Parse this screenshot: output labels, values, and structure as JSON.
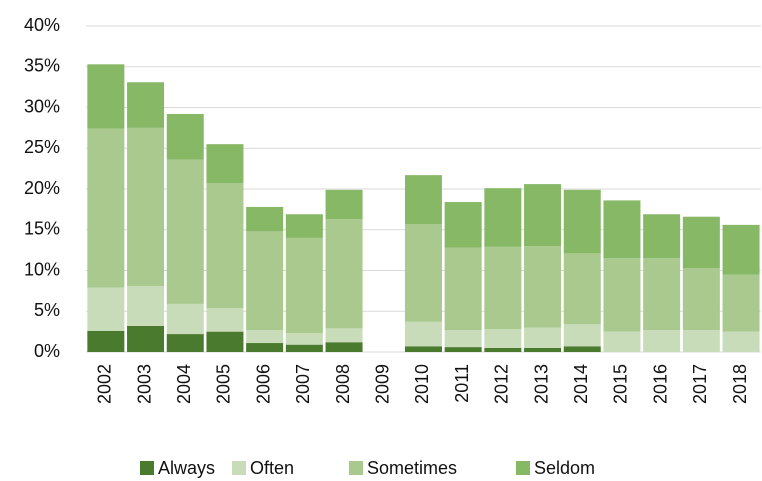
{
  "chart_data": {
    "type": "stacked-bar",
    "categories": [
      "2002",
      "2003",
      "2004",
      "2005",
      "2006",
      "2007",
      "2008",
      "2009",
      "2010",
      "2011",
      "2012",
      "2013",
      "2014",
      "2015",
      "2016",
      "2017",
      "2018"
    ],
    "series": [
      {
        "name": "Always",
        "color": "#4a7a2e",
        "values": [
          2.6,
          3.2,
          2.2,
          2.5,
          1.1,
          0.9,
          1.2,
          null,
          0.7,
          0.6,
          0.5,
          0.5,
          0.7,
          0,
          0,
          0,
          0
        ]
      },
      {
        "name": "Often",
        "color": "#c9dcb9",
        "values": [
          5.3,
          4.9,
          3.7,
          2.9,
          1.6,
          1.4,
          1.7,
          null,
          3.0,
          2.1,
          2.3,
          2.5,
          2.7,
          2.5,
          2.7,
          2.7,
          2.5
        ]
      },
      {
        "name": "Sometimes",
        "color": "#a9c98f",
        "values": [
          19.5,
          19.4,
          17.7,
          15.3,
          12.1,
          11.7,
          13.4,
          null,
          12.0,
          10.1,
          10.1,
          10.0,
          8.7,
          9.0,
          8.8,
          7.6,
          7.0
        ]
      },
      {
        "name": "Seldom",
        "color": "#86b866",
        "values": [
          7.9,
          5.6,
          5.6,
          4.8,
          3.0,
          2.9,
          3.6,
          null,
          6.0,
          5.6,
          7.2,
          7.6,
          7.8,
          7.1,
          5.4,
          6.3,
          6.1
        ]
      }
    ],
    "ylim": [
      0,
      40
    ],
    "yticks": [
      {
        "value": 0,
        "label": "0%"
      },
      {
        "value": 5,
        "label": "5%"
      },
      {
        "value": 10,
        "label": "10%"
      },
      {
        "value": 15,
        "label": "15%"
      },
      {
        "value": 20,
        "label": "20%"
      },
      {
        "value": 25,
        "label": "25%"
      },
      {
        "value": 30,
        "label": "30%"
      },
      {
        "value": 35,
        "label": "35%"
      },
      {
        "value": 40,
        "label": "40%"
      }
    ],
    "grid": true,
    "legend": "bottom"
  }
}
